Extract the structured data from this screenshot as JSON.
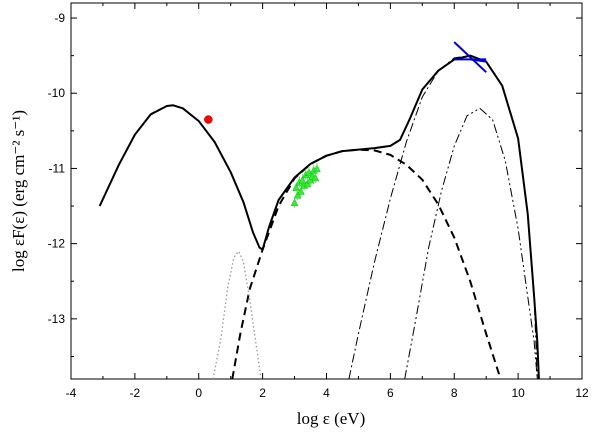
{
  "chart_data": {
    "type": "line",
    "title": "",
    "xlabel": "log ε (eV)",
    "ylabel": "log εF(ε)  (erg cm⁻² s⁻¹)",
    "xlim": [
      -4,
      12
    ],
    "ylim": [
      -13.8,
      -8.8
    ],
    "x_ticks": [
      "-4",
      "-2",
      "0",
      "2",
      "4",
      "6",
      "8",
      "10",
      "12"
    ],
    "y_ticks": [
      "-9",
      "-10",
      "-11",
      "-12",
      "-13"
    ],
    "grid": false,
    "legend": "none",
    "series": [
      {
        "style": "solid",
        "color": "#000000",
        "x": [
          -3.1,
          -2.5,
          -2.0,
          -1.5,
          -1.0,
          -0.8,
          -0.5,
          0.0,
          0.5,
          1.0,
          1.4,
          1.7,
          1.9,
          2.0,
          2.2,
          2.5,
          3.0,
          3.5,
          4.0,
          4.5,
          5.0,
          5.5,
          6.0,
          6.3,
          6.6,
          7.0,
          7.5,
          8.0,
          8.5,
          9.0,
          9.5,
          10.0,
          10.3,
          10.5,
          10.6,
          10.65
        ],
        "y": [
          -11.5,
          -10.95,
          -10.55,
          -10.28,
          -10.17,
          -10.16,
          -10.2,
          -10.37,
          -10.65,
          -11.05,
          -11.45,
          -11.85,
          -12.05,
          -12.08,
          -11.78,
          -11.42,
          -11.12,
          -10.94,
          -10.83,
          -10.77,
          -10.75,
          -10.73,
          -10.7,
          -10.62,
          -10.35,
          -9.95,
          -9.7,
          -9.55,
          -9.5,
          -9.58,
          -9.9,
          -10.6,
          -11.6,
          -12.7,
          -13.3,
          -13.8
        ]
      },
      {
        "style": "dashed",
        "color": "#000000",
        "x": [
          1.05,
          1.3,
          1.6,
          2.0,
          2.5,
          3.0,
          3.5,
          4.0,
          4.5,
          5.0,
          5.5,
          6.0,
          6.5,
          7.0,
          7.5,
          8.0,
          8.5,
          9.0,
          9.3,
          9.45
        ],
        "y": [
          -13.8,
          -13.2,
          -12.6,
          -12.08,
          -11.5,
          -11.13,
          -10.94,
          -10.83,
          -10.77,
          -10.75,
          -10.76,
          -10.82,
          -10.95,
          -11.15,
          -11.48,
          -11.92,
          -12.5,
          -13.2,
          -13.6,
          -13.8
        ]
      },
      {
        "style": "dotted",
        "color": "#999999",
        "x": [
          0.45,
          0.7,
          0.9,
          1.1,
          1.25,
          1.4,
          1.6,
          1.8,
          1.95
        ],
        "y": [
          -13.8,
          -13.25,
          -12.6,
          -12.18,
          -12.1,
          -12.25,
          -12.75,
          -13.35,
          -13.8
        ]
      },
      {
        "style": "dashdot",
        "color": "#000000",
        "x": [
          4.7,
          5.0,
          5.5,
          6.0,
          6.5,
          7.0,
          7.5,
          8.0,
          8.5,
          9.0,
          9.5,
          10.0,
          10.3,
          10.5,
          10.6
        ],
        "y": [
          -13.8,
          -13.2,
          -12.25,
          -11.4,
          -10.65,
          -10.05,
          -9.7,
          -9.53,
          -9.5,
          -9.58,
          -9.9,
          -10.6,
          -11.6,
          -12.7,
          -13.8
        ]
      },
      {
        "style": "dashdotdot",
        "color": "#000000",
        "x": [
          6.45,
          6.8,
          7.2,
          7.6,
          8.0,
          8.4,
          8.8,
          9.2,
          9.6,
          10.0,
          10.3,
          10.5,
          10.6
        ],
        "y": [
          -13.8,
          -13.0,
          -12.05,
          -11.3,
          -10.7,
          -10.3,
          -10.2,
          -10.35,
          -10.9,
          -11.8,
          -12.7,
          -13.3,
          -13.8
        ]
      }
    ],
    "markers": [
      {
        "label": "optical point",
        "shape": "circle",
        "color": "#ff0000",
        "x": [
          0.3
        ],
        "y": [
          -10.35
        ]
      },
      {
        "label": "X-ray points",
        "shape": "triangle",
        "color": "#33ee33",
        "x": [
          3.0,
          3.05,
          3.1,
          3.15,
          3.2,
          3.25,
          3.3,
          3.35,
          3.4,
          3.45,
          3.5,
          3.55,
          3.6,
          3.65,
          3.7
        ],
        "y": [
          -11.45,
          -11.25,
          -11.35,
          -11.18,
          -11.3,
          -11.15,
          -11.22,
          -11.08,
          -11.2,
          -11.05,
          -11.15,
          -11.1,
          -11.02,
          -11.12,
          -11.0
        ]
      }
    ],
    "gamma_bowtie": {
      "color": "#0000cc",
      "segments": [
        {
          "x": [
            8.0,
            9.0
          ],
          "y": [
            -9.32,
            -9.72
          ]
        },
        {
          "x": [
            8.0,
            9.0
          ],
          "y": [
            -9.55,
            -9.55
          ]
        },
        {
          "x": [
            8.5,
            9.0
          ],
          "y": [
            -9.55,
            -9.58
          ]
        }
      ]
    }
  }
}
